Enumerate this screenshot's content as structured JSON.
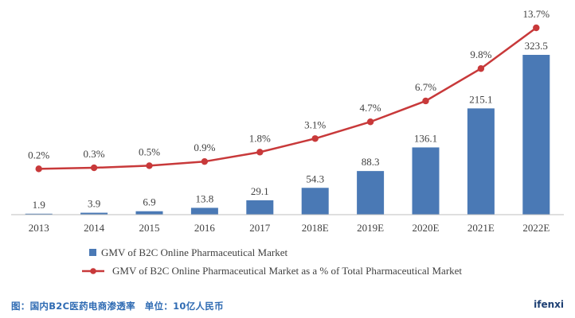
{
  "chart_data": {
    "type": "bar",
    "title": "",
    "xlabel": "",
    "ylabel": "",
    "categories": [
      "2013",
      "2014",
      "2015",
      "2016",
      "2017",
      "2018E",
      "2019E",
      "2020E",
      "2021E",
      "2022E"
    ],
    "series": [
      {
        "name": "GMV of B2C Online Pharmaceutical Market",
        "type": "bar",
        "color": "#4a79b5",
        "values": [
          1.9,
          3.9,
          6.9,
          13.8,
          29.1,
          54.3,
          88.3,
          136.1,
          215.1,
          323.5
        ],
        "labels": [
          "1.9",
          "3.9",
          "6.9",
          "13.8",
          "29.1",
          "54.3",
          "88.3",
          "136.1",
          "215.1",
          "323.5"
        ]
      },
      {
        "name": "GMV of B2C Online Pharmaceutical Market as a % of Total Pharmaceutical Market",
        "type": "line",
        "color": "#c8393a",
        "values": [
          0.2,
          0.3,
          0.5,
          0.9,
          1.8,
          3.1,
          4.7,
          6.7,
          9.8,
          13.7
        ],
        "labels": [
          "0.2%",
          "0.3%",
          "0.5%",
          "0.9%",
          "1.8%",
          "3.1%",
          "4.7%",
          "6.7%",
          "9.8%",
          "13.7%"
        ]
      }
    ],
    "ylim": [
      0,
      323.5
    ],
    "ylim_secondary": [
      0,
      13.7
    ],
    "legend": "bottom"
  },
  "footer": {
    "note": "图：国内B2C医药电商渗透率　单位：10亿人民币",
    "brand": "ifenxi"
  },
  "colors": {
    "bar": "#4a79b5",
    "line": "#c8393a",
    "text": "#404040",
    "footer_text": "#2f6bb3"
  }
}
